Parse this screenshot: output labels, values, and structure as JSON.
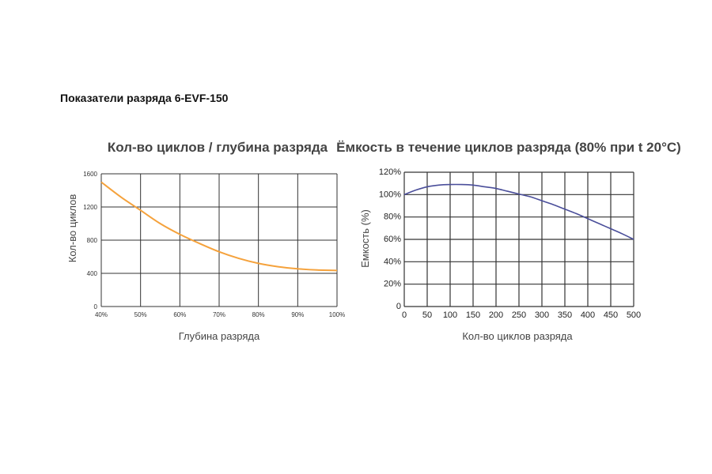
{
  "heading": "Показатели разряда 6-EVF-150",
  "colors": {
    "grid": "#333333",
    "left_series": "#f5a23c",
    "right_series": "#4a4e9a"
  },
  "chart_data": [
    {
      "type": "line",
      "title": "Кол-во циклов / глубина разряда",
      "xlabel": "Глубина разряда",
      "ylabel": "Кол-во циклов",
      "xlim": [
        40,
        100
      ],
      "ylim": [
        0,
        1600
      ],
      "x_ticks": [
        "40%",
        "50%",
        "60%",
        "70%",
        "80%",
        "90%",
        "100%"
      ],
      "x_tick_values": [
        40,
        50,
        60,
        70,
        80,
        90,
        100
      ],
      "y_ticks": [
        "0",
        "400",
        "800",
        "1200",
        "1600"
      ],
      "y_tick_values": [
        0,
        400,
        800,
        1200,
        1600
      ],
      "grid": true,
      "series": [
        {
          "x": [
            40,
            45,
            50,
            55,
            60,
            65,
            70,
            75,
            80,
            85,
            90,
            95,
            100
          ],
          "y": [
            1500,
            1320,
            1160,
            1000,
            870,
            760,
            660,
            580,
            520,
            480,
            455,
            440,
            435
          ]
        }
      ]
    },
    {
      "type": "line",
      "title": "Ёмкость в течение циклов разряда (80% при t 20°С)",
      "xlabel": "Кол-во циклов разряда",
      "ylabel": "Емкость (%)",
      "xlim": [
        0,
        500
      ],
      "ylim": [
        0,
        120
      ],
      "x_ticks": [
        "0",
        "50",
        "100",
        "150",
        "200",
        "250",
        "300",
        "350",
        "400",
        "450",
        "500"
      ],
      "x_tick_values": [
        0,
        50,
        100,
        150,
        200,
        250,
        300,
        350,
        400,
        450,
        500
      ],
      "y_ticks": [
        "0",
        "20%",
        "40%",
        "60%",
        "80%",
        "100%",
        "120%"
      ],
      "y_tick_values": [
        0,
        20,
        40,
        60,
        80,
        100,
        120
      ],
      "grid": true,
      "series": [
        {
          "x": [
            0,
            25,
            50,
            75,
            100,
            125,
            150,
            175,
            200,
            225,
            250,
            275,
            300,
            325,
            350,
            375,
            400,
            425,
            450,
            475,
            500
          ],
          "y": [
            100,
            104,
            107,
            108.5,
            109,
            109,
            108.5,
            107,
            105.5,
            103,
            100.5,
            98,
            94.5,
            91,
            87,
            83,
            78.5,
            74,
            69.5,
            65,
            60
          ]
        }
      ]
    }
  ]
}
